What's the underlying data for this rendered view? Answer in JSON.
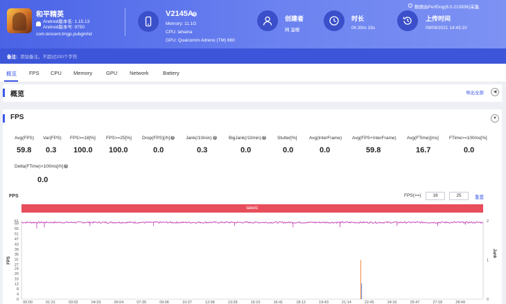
{
  "app": {
    "name": "和平精英",
    "android_version": "Android版本名: 1.15.13",
    "android_code": "Android版本号: 9750",
    "package": "com.tencent.tmgp.pubgmhd"
  },
  "device": {
    "name": "V2145A",
    "memory": "Memory: 11.1G",
    "cpu": "CPU: lahaina",
    "gpu": "GPU: Qualcomm Adreno (TM) 660"
  },
  "creator": {
    "title": "创建者",
    "value": "网 温暖"
  },
  "duration": {
    "title": "时长",
    "value": "0h 30m 19s"
  },
  "upload": {
    "title": "上传时间",
    "value": "09/09/2021 14:43:10"
  },
  "source": "数据由PerfDog(6.0.210836)采集",
  "note": {
    "label": "备注:",
    "placeholder": "添加备注，不超过200个字符"
  },
  "tabs": [
    "概览",
    "FPS",
    "CPU",
    "Memory",
    "GPU",
    "Network",
    "Battery"
  ],
  "overview": {
    "title": "概览",
    "export": "导出全部"
  },
  "fps_section": {
    "title": "FPS",
    "metrics": [
      {
        "label": "Avg(FPS)",
        "value": "59.8",
        "help": false
      },
      {
        "label": "Var(FPS)",
        "value": "0.3",
        "help": false
      },
      {
        "label": "FPS>=18[%]",
        "value": "100.0",
        "help": false
      },
      {
        "label": "FPS>=25[%]",
        "value": "100.0",
        "help": false
      },
      {
        "label": "Drop(FPS)[/h]",
        "value": "0.0",
        "help": true
      },
      {
        "label": "Jank(/10min)",
        "value": "0.3",
        "help": true
      },
      {
        "label": "BigJank(/10min)",
        "value": "0.0",
        "help": true
      },
      {
        "label": "Stutter[%]",
        "value": "0.0",
        "help": false
      },
      {
        "label": "Avg(InterFrame)",
        "value": "0.0",
        "help": false
      },
      {
        "label": "Avg(FPS+InterFrame)",
        "value": "59.8",
        "help": false
      },
      {
        "label": "Avg(FTime)[ms]",
        "value": "16.7",
        "help": false
      },
      {
        "label": "FTime>=100ms[%]",
        "value": "0.0",
        "help": false
      }
    ],
    "metric_row2": {
      "label": "Delta(FTime)>100ms[/h]",
      "value": "0.0",
      "help": true
    },
    "chart_title": "FPS",
    "threshold_label": "FPS(>=)",
    "threshold_1": "18",
    "threshold_2": "25",
    "reset": "重置",
    "band_label": "label1"
  },
  "colors": {
    "accent": "#3b57e8",
    "fps_line": "#c03ab4",
    "jank_line": "#f08a3c",
    "bigjank_line": "#4a7ef0",
    "band": "#e84d5b"
  },
  "chart_data": {
    "type": "line",
    "title": "",
    "xlabel": "",
    "ylabel": "FPS",
    "y2label": "Jank",
    "ylim": [
      0,
      61
    ],
    "y2lim": [
      0,
      2
    ],
    "yticks": [
      0,
      4,
      8,
      12,
      16,
      20,
      24,
      27,
      31,
      35,
      39,
      43,
      47,
      51,
      55,
      59,
      61
    ],
    "y2ticks": [
      0,
      1,
      2
    ],
    "xticks": [
      "00:00",
      "01:31",
      "03:02",
      "04:33",
      "06:04",
      "07:35",
      "09:06",
      "10:37",
      "12:08",
      "13:39",
      "15:10",
      "16:41",
      "18:12",
      "19:43",
      "21:14",
      "22:45",
      "24:16",
      "25:47",
      "27:18",
      "28:49"
    ],
    "x_range_seconds": [
      0,
      1819
    ],
    "series": [
      {
        "name": "",
        "axis": "left",
        "baseline": 59.8,
        "dips": [
          [
            60,
            55
          ],
          [
            90,
            56
          ],
          [
            270,
            57
          ],
          [
            520,
            57
          ],
          [
            840,
            57
          ],
          [
            1070,
            56
          ],
          [
            1255,
            56
          ],
          [
            1480,
            57
          ],
          [
            1640,
            57
          ],
          [
            1750,
            58
          ]
        ]
      },
      {
        "name": "",
        "axis": "right",
        "spikes": [
          [
            1337,
            1
          ]
        ]
      },
      {
        "name": "",
        "axis": "right",
        "spikes": [
          [
            1338,
            0.4
          ]
        ]
      }
    ],
    "grid": false,
    "legend": "none"
  }
}
